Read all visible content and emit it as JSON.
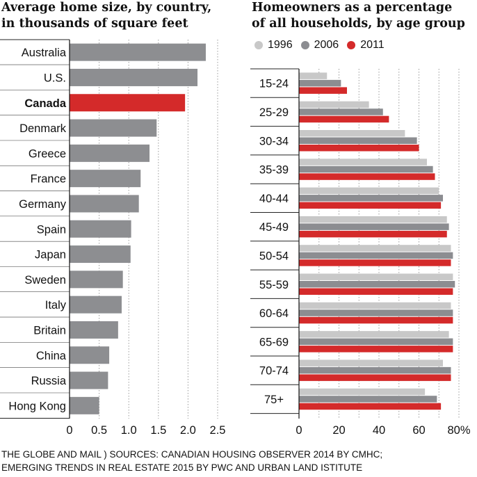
{
  "left_chart": {
    "title_line1": "Average home size, by country,",
    "title_line2": "in thousands of square feet"
  },
  "right_chart": {
    "title_line1": "Homeowners as a percentage",
    "title_line2": "of all households, by age group"
  },
  "legend": [
    {
      "label": "1996",
      "color": "#c8c8c8"
    },
    {
      "label": "2006",
      "color": "#8c8d91"
    },
    {
      "label": "2011",
      "color": "#d42a2a"
    }
  ],
  "source": {
    "line1": "THE GLOBE AND MAIL ) SOURCES: CANADIAN HOUSING OBSERVER 2014 BY CMHC;",
    "line2": "EMERGING TRENDS IN REAL ESTATE 2015 BY PWC AND URBAN LAND ISTITUTE"
  },
  "colors": {
    "gray_bar": "#8d8e91",
    "highlight_bar": "#d42a2a",
    "light_gray": "#c8c8c8",
    "mid_gray": "#8c8d91",
    "red": "#d42a2a"
  },
  "chart_data": [
    {
      "type": "bar",
      "orientation": "horizontal",
      "title": "Average home size, by country, in thousands of square feet",
      "categories": [
        "Australia",
        "U.S.",
        "Canada",
        "Denmark",
        "Greece",
        "France",
        "Germany",
        "Spain",
        "Japan",
        "Sweden",
        "Italy",
        "Britain",
        "China",
        "Russia",
        "Hong Kong"
      ],
      "values": [
        2.3,
        2.16,
        1.95,
        1.47,
        1.35,
        1.2,
        1.17,
        1.04,
        1.03,
        0.9,
        0.88,
        0.82,
        0.67,
        0.65,
        0.5
      ],
      "highlight": "Canada",
      "xlim": [
        0,
        2.5
      ],
      "xticks": [
        "0",
        "0.5",
        "1.0",
        "1.5",
        "2.0",
        "2.5"
      ],
      "tick_values": [
        0,
        0.5,
        1.0,
        1.5,
        2.0,
        2.5
      ],
      "grid": true
    },
    {
      "type": "bar",
      "orientation": "horizontal",
      "title": "Homeowners as a percentage of all households, by age group",
      "categories": [
        "15-24",
        "25-29",
        "30-34",
        "35-39",
        "40-44",
        "45-49",
        "50-54",
        "55-59",
        "60-64",
        "65-69",
        "70-74",
        "75+"
      ],
      "series": [
        {
          "name": "1996",
          "values": [
            14,
            35,
            53,
            64,
            70,
            74,
            76,
            77,
            76,
            75,
            72,
            63
          ]
        },
        {
          "name": "2006",
          "values": [
            21,
            42,
            59,
            67,
            72,
            75,
            77,
            78,
            77,
            77,
            76,
            69
          ]
        },
        {
          "name": "2011",
          "values": [
            24,
            45,
            60,
            68,
            71,
            74,
            76,
            77,
            77,
            77,
            76,
            71
          ]
        }
      ],
      "xlim": [
        0,
        80
      ],
      "xticks": [
        "0",
        "20",
        "40",
        "60",
        "80%"
      ],
      "tick_values": [
        0,
        20,
        40,
        60,
        80
      ],
      "grid": true,
      "legend_position": "top"
    }
  ]
}
